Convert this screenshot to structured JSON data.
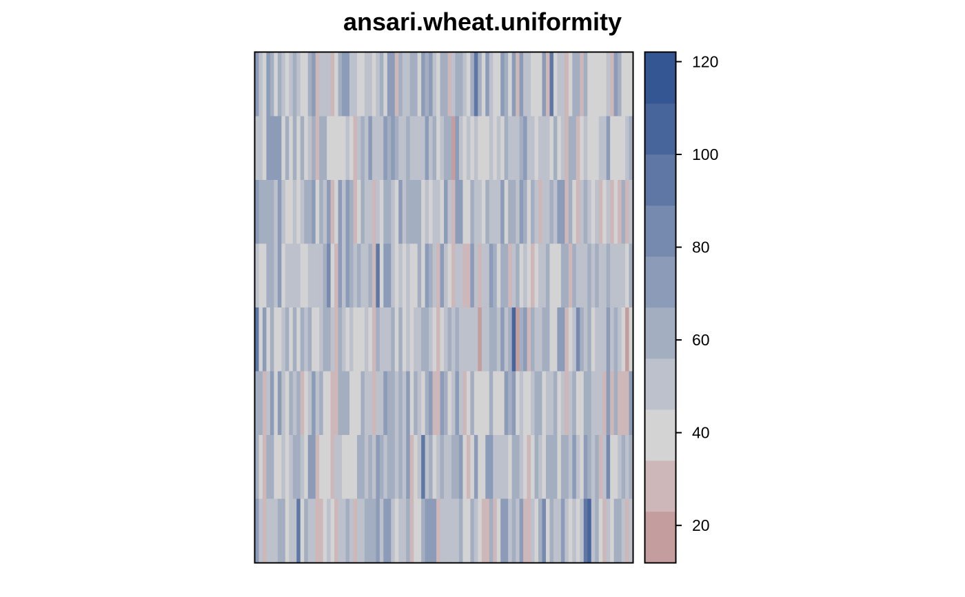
{
  "chart_data": {
    "type": "heatmap",
    "title": "ansari.wheat.uniformity",
    "n_rows": 8,
    "n_cols": 100,
    "zlim": [
      12,
      122
    ],
    "legend": {
      "ticks": [
        120,
        100,
        80,
        60,
        40,
        20
      ],
      "breaks": [
        12,
        23,
        34,
        45,
        56,
        67,
        78,
        89,
        100,
        111,
        122
      ],
      "colors": [
        "#c49d9f",
        "#cdb7b8",
        "#d3d3d3",
        "#bcc1cc",
        "#a4aec1",
        "#8c9bb7",
        "#7689ae",
        "#5f77a5",
        "#48659b",
        "#345693"
      ]
    },
    "grid_colors": "divergent red-gray-blue; values below reconstruct the visible field",
    "seed_description": "",
    "values": []
  }
}
